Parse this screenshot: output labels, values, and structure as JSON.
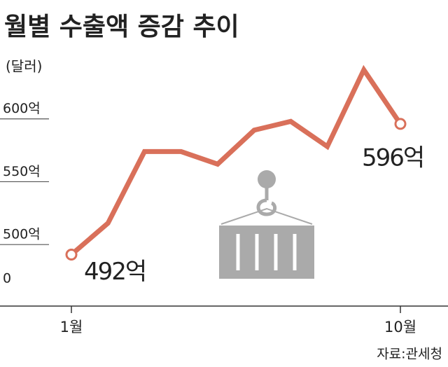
{
  "chart_data": {
    "type": "line",
    "title": "월별 수출액 증감 추이",
    "unit": "(달러)",
    "source": "자료:관세청",
    "categories": [
      "1월",
      null,
      null,
      null,
      null,
      null,
      null,
      null,
      null,
      "10월"
    ],
    "series": [
      {
        "color": "#d9705a",
        "values": [
          492,
          517,
          574,
          574,
          564,
          591,
          598,
          578,
          639,
          596
        ],
        "value_labels": [
          "492억",
          null,
          null,
          null,
          null,
          null,
          null,
          null,
          null,
          "596억"
        ]
      }
    ],
    "ylim": [
      0,
      650
    ],
    "axis_break": [
      0,
      470
    ],
    "yticks": [
      {
        "value": 600,
        "label": "600억"
      },
      {
        "value": 550,
        "label": "550억"
      },
      {
        "value": 500,
        "label": "500억"
      },
      0
    ],
    "grid": true
  }
}
